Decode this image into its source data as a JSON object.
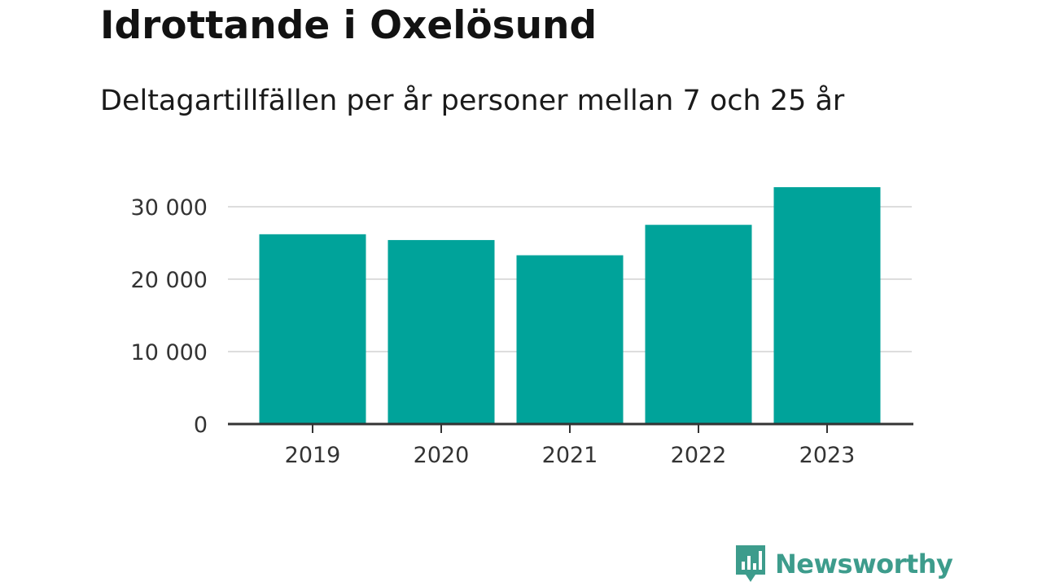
{
  "chart_data": {
    "type": "bar",
    "title": "Idrottande i Oxelösund",
    "subtitle": "Deltagartillfällen per år personer mellan 7 och 25 år",
    "categories": [
      "2019",
      "2020",
      "2021",
      "2022",
      "2023"
    ],
    "values": [
      26200,
      25400,
      23300,
      27500,
      32700
    ],
    "ylim": [
      0,
      30000
    ],
    "yticks": [
      0,
      10000,
      20000,
      30000
    ],
    "ytick_labels": [
      "0",
      "10 000",
      "20 000",
      "30 000"
    ],
    "xlabel": "",
    "ylabel": "",
    "grid": true,
    "bar_color": "#00a39a"
  },
  "brand": {
    "name": "Newsworthy",
    "icon": "newsworthy-logo-icon",
    "color": "#3d9c8c"
  }
}
